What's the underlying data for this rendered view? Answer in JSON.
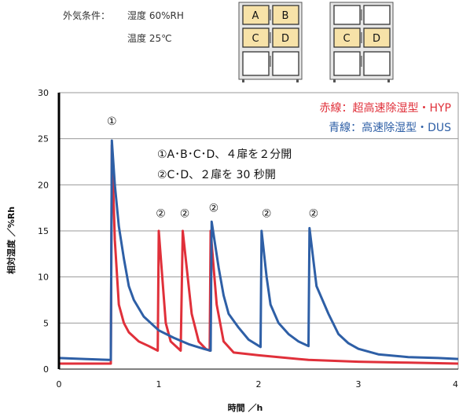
{
  "conditions": {
    "label": "外気条件：",
    "humidity": "湿度 60%RH",
    "temperature": "温度 25℃"
  },
  "cabinet_left": {
    "labels": [
      "A",
      "B",
      "C",
      "D"
    ]
  },
  "cabinet_right": {
    "labels": [
      "C",
      "D"
    ]
  },
  "legend": {
    "red": "赤線：超高速除湿型・HYP",
    "blue": "青線：高速除湿型・DUS"
  },
  "notes": [
    "①A･B･C･D、４扉を２分開",
    "②C･D、２扉を 30 秒開"
  ],
  "markers": [
    "①",
    "②",
    "②",
    "②",
    "②",
    "②"
  ],
  "colors": {
    "red": "#e0303a",
    "blue": "#2e5fa6",
    "grid": "#9a9a9a",
    "axis": "#000000"
  },
  "chart_data": {
    "type": "line",
    "xlabel": "時間 ／h",
    "ylabel": "相対湿度 ／%Rh",
    "xlim": [
      0,
      4
    ],
    "ylim": [
      0,
      30
    ],
    "xticks": [
      0,
      1,
      2,
      3,
      4
    ],
    "yticks": [
      0,
      5,
      10,
      15,
      20,
      25,
      30
    ],
    "grid": true,
    "legend_position": "top-right",
    "series": [
      {
        "name": "赤線：超高速除湿型・HYP",
        "color": "#e0303a",
        "points": [
          [
            0.0,
            0.6
          ],
          [
            0.52,
            0.6
          ],
          [
            0.53,
            24.3
          ],
          [
            0.56,
            14.0
          ],
          [
            0.6,
            7.0
          ],
          [
            0.65,
            5.0
          ],
          [
            0.7,
            4.0
          ],
          [
            0.8,
            3.0
          ],
          [
            0.9,
            2.5
          ],
          [
            0.99,
            2.0
          ],
          [
            1.0,
            15.0
          ],
          [
            1.07,
            5.0
          ],
          [
            1.12,
            3.0
          ],
          [
            1.22,
            2.0
          ],
          [
            1.24,
            15.0
          ],
          [
            1.33,
            6.0
          ],
          [
            1.4,
            3.0
          ],
          [
            1.47,
            2.2
          ],
          [
            1.51,
            2.0
          ],
          [
            1.52,
            15.0
          ],
          [
            1.58,
            7.0
          ],
          [
            1.65,
            3.0
          ],
          [
            1.75,
            1.8
          ],
          [
            2.0,
            1.5
          ],
          [
            2.5,
            1.0
          ],
          [
            3.0,
            0.8
          ],
          [
            3.5,
            0.7
          ],
          [
            4.0,
            0.6
          ]
        ]
      },
      {
        "name": "青線：高速除湿型・DUS",
        "color": "#2e5fa6",
        "points": [
          [
            0.0,
            1.2
          ],
          [
            0.25,
            1.1
          ],
          [
            0.5,
            1.0
          ],
          [
            0.52,
            1.0
          ],
          [
            0.53,
            24.8
          ],
          [
            0.56,
            20.0
          ],
          [
            0.6,
            15.5
          ],
          [
            0.65,
            12.0
          ],
          [
            0.7,
            9.0
          ],
          [
            0.75,
            7.5
          ],
          [
            0.85,
            5.7
          ],
          [
            1.0,
            4.2
          ],
          [
            1.15,
            3.4
          ],
          [
            1.3,
            2.7
          ],
          [
            1.45,
            2.2
          ],
          [
            1.52,
            2.0
          ],
          [
            1.53,
            16.0
          ],
          [
            1.6,
            11.0
          ],
          [
            1.65,
            8.0
          ],
          [
            1.7,
            6.0
          ],
          [
            1.8,
            4.5
          ],
          [
            1.9,
            3.2
          ],
          [
            2.02,
            2.4
          ],
          [
            2.03,
            15.0
          ],
          [
            2.08,
            10.0
          ],
          [
            2.12,
            7.0
          ],
          [
            2.2,
            5.0
          ],
          [
            2.3,
            3.8
          ],
          [
            2.4,
            3.0
          ],
          [
            2.5,
            2.5
          ],
          [
            2.51,
            15.3
          ],
          [
            2.58,
            9.0
          ],
          [
            2.7,
            6.0
          ],
          [
            2.8,
            3.8
          ],
          [
            2.9,
            2.8
          ],
          [
            3.0,
            2.2
          ],
          [
            3.2,
            1.6
          ],
          [
            3.5,
            1.3
          ],
          [
            3.8,
            1.2
          ],
          [
            4.0,
            1.1
          ]
        ]
      }
    ],
    "marker_positions": [
      [
        0.53,
        26.5
      ],
      [
        1.02,
        16.5
      ],
      [
        1.26,
        16.5
      ],
      [
        1.55,
        17.1
      ],
      [
        2.08,
        16.5
      ],
      [
        2.55,
        16.5
      ]
    ]
  }
}
